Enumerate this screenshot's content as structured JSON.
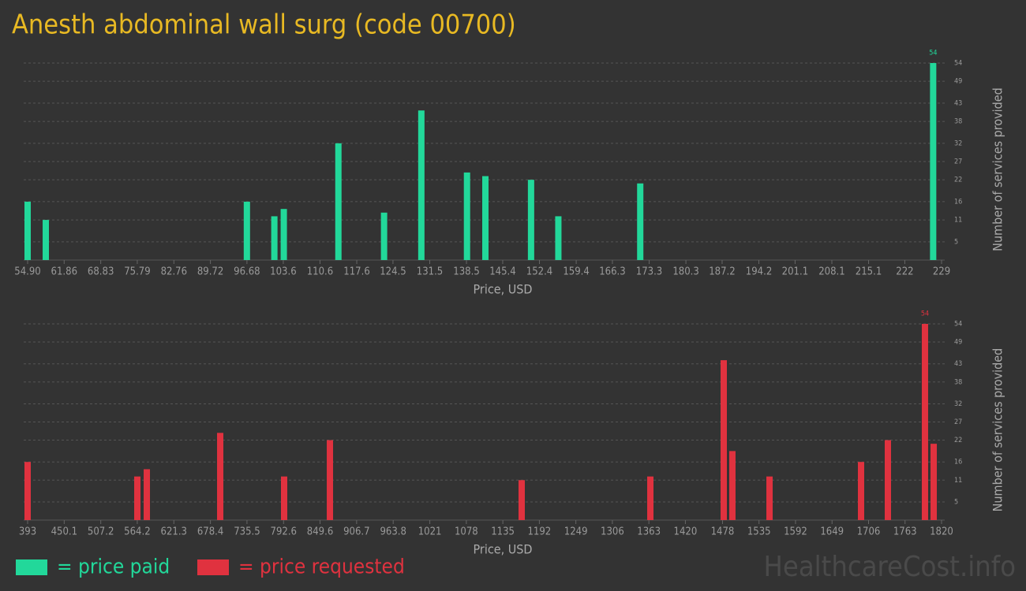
{
  "title": "Anesth abdominal wall surg (code 00700)",
  "watermark": "HealthcareCost.info",
  "chart_data": [
    {
      "type": "bar",
      "xlabel": "Price, USD",
      "ylabel": "Number of services provided",
      "xlim": [
        54.9,
        229
      ],
      "xticks": [
        {
          "value": 54.9,
          "label": "54.90"
        },
        61.86,
        68.83,
        75.79,
        82.76,
        89.72,
        96.68,
        103.6,
        110.6,
        117.6,
        124.5,
        131.5,
        138.5,
        145.4,
        152.4,
        159.4,
        166.3,
        173.3,
        180.3,
        187.2,
        194.2,
        201.1,
        208.1,
        215.1,
        222,
        229
      ],
      "ylim": [
        0,
        54
      ],
      "yticks": [
        5,
        11,
        16,
        22,
        27,
        32,
        38,
        43,
        49,
        54
      ],
      "grid": true,
      "x": [
        54.9,
        58.36,
        96.67,
        101.9,
        103.7,
        114.1,
        122.8,
        129.9,
        138.6,
        142.1,
        150.8,
        156.0,
        171.6,
        227.4
      ],
      "series": [
        {
          "name": "= price paid",
          "color": "#22d89a",
          "values": [
            16,
            11,
            16,
            12,
            14,
            32,
            13,
            41,
            24,
            23,
            22,
            12,
            21,
            54
          ]
        }
      ]
    },
    {
      "type": "bar",
      "xlabel": "Price, USD",
      "ylabel": "Number of services provided",
      "xlim": [
        393,
        1820
      ],
      "xticks": [
        393,
        450.1,
        507.2,
        564.2,
        621.3,
        678.4,
        735.5,
        792.6,
        849.6,
        906.7,
        963.8,
        1021,
        1078,
        1135,
        1192,
        1249,
        1306,
        1363,
        1420,
        1478,
        1535,
        1592,
        1649,
        1706,
        1763,
        1820
      ],
      "ylim": [
        0,
        54
      ],
      "yticks": [
        5,
        11,
        16,
        22,
        27,
        32,
        38,
        43,
        49,
        54
      ],
      "grid": true,
      "x": [
        393,
        564.3,
        579.1,
        693.7,
        793.5,
        865.0,
        1164.4,
        1365.3,
        1479.9,
        1493.4,
        1551.4,
        1694.3,
        1736.2,
        1794.1,
        1807.7
      ],
      "series": [
        {
          "name": "= price requested",
          "color": "#e0323f",
          "values": [
            16,
            12,
            14,
            24,
            12,
            22,
            11,
            12,
            44,
            19,
            12,
            16,
            22,
            54,
            21
          ]
        }
      ]
    }
  ]
}
